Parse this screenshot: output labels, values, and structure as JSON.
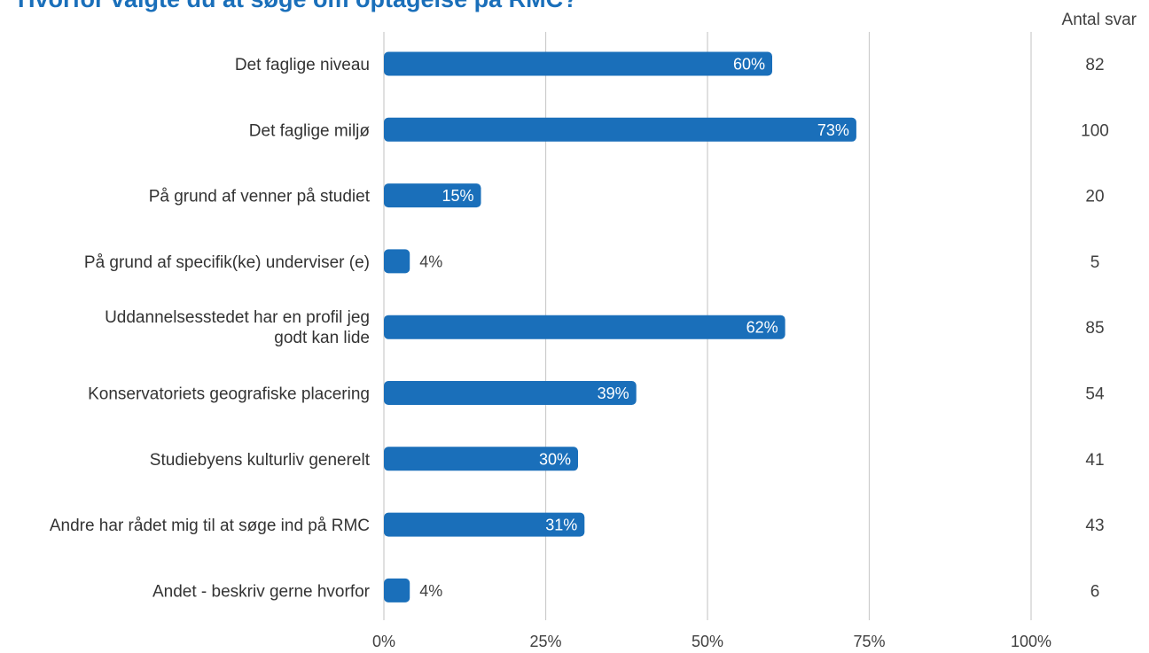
{
  "chart_data": {
    "type": "bar",
    "orientation": "horizontal",
    "title": "Hvorfor valgte du at søge om optagelse på RMC?",
    "count_header": "Antal svar",
    "categories": [
      "Det faglige niveau",
      "Det faglige miljø",
      "På grund af venner på studiet",
      "På grund af specifik(ke) underviser (e)",
      "Uddannelsesstedet har en profil jeg godt kan lide",
      "Konservatoriets geografiske placering",
      "Studiebyens kulturliv generelt",
      "Andre har rådet mig til at søge ind på RMC",
      "Andet - beskriv gerne hvorfor"
    ],
    "values": [
      60,
      73,
      15,
      4,
      62,
      39,
      30,
      31,
      4
    ],
    "value_labels": [
      "60%",
      "73%",
      "15%",
      "4%",
      "62%",
      "39%",
      "30%",
      "31%",
      "4%"
    ],
    "counts": [
      "82",
      "100",
      "20",
      "5",
      "85",
      "54",
      "41",
      "43",
      "6"
    ],
    "xlim": [
      0,
      100
    ],
    "xticks": [
      0,
      25,
      50,
      75,
      100
    ],
    "xtick_labels": [
      "0%",
      "25%",
      "50%",
      "75%",
      "100%"
    ],
    "grid": true,
    "bar_color": "#1a6fba"
  }
}
